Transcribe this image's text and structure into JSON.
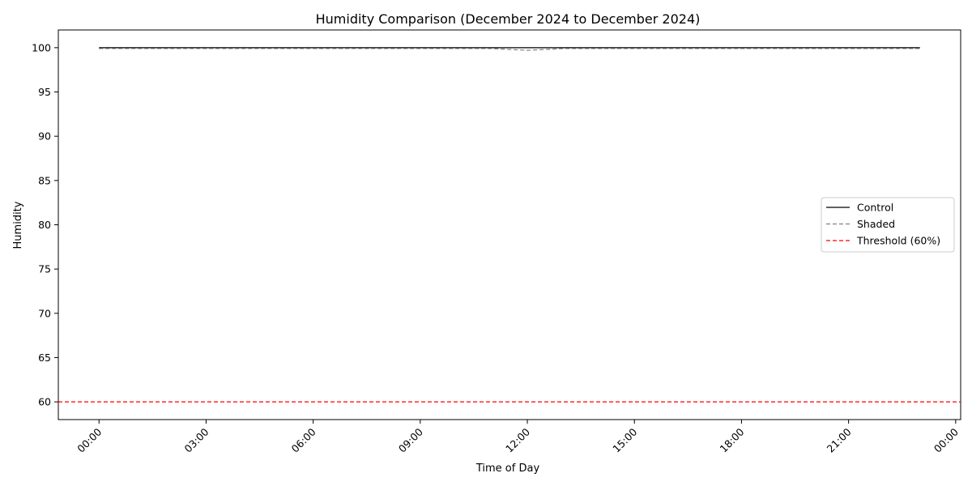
{
  "chart_data": {
    "type": "line",
    "title": "Humidity Comparison (December 2024 to December 2024)",
    "xlabel": "Time of Day",
    "ylabel": "Humidity",
    "xlim_hours": [
      -1.14,
      24.14
    ],
    "ylim": [
      58,
      102
    ],
    "x_ticks": [
      {
        "hour": 0,
        "label": "00:00"
      },
      {
        "hour": 3,
        "label": "03:00"
      },
      {
        "hour": 6,
        "label": "06:00"
      },
      {
        "hour": 9,
        "label": "09:00"
      },
      {
        "hour": 12,
        "label": "12:00"
      },
      {
        "hour": 15,
        "label": "15:00"
      },
      {
        "hour": 18,
        "label": "18:00"
      },
      {
        "hour": 21,
        "label": "21:00"
      },
      {
        "hour": 24,
        "label": "00:00"
      }
    ],
    "y_ticks": [
      60,
      65,
      70,
      75,
      80,
      85,
      90,
      95,
      100
    ],
    "x_hours": [
      0,
      1,
      2,
      3,
      4,
      5,
      6,
      7,
      8,
      9,
      10,
      11,
      12,
      13,
      14,
      15,
      16,
      17,
      18,
      19,
      20,
      21,
      22,
      23
    ],
    "series": [
      {
        "name": "Control",
        "color": "#000000",
        "style": "solid",
        "values": [
          100,
          100,
          100,
          100,
          100,
          100,
          100,
          100,
          100,
          100,
          100,
          100,
          100,
          100,
          100,
          100,
          100,
          100,
          100,
          100,
          100,
          100,
          100,
          100
        ]
      },
      {
        "name": "Shaded",
        "color": "#808080",
        "style": "dashed",
        "values": [
          99.9,
          99.9,
          99.9,
          99.9,
          99.9,
          99.9,
          99.9,
          99.9,
          99.9,
          99.9,
          99.9,
          99.9,
          99.7,
          99.9,
          99.9,
          99.9,
          99.9,
          99.9,
          99.9,
          99.9,
          99.9,
          99.9,
          99.9,
          99.9
        ]
      }
    ],
    "threshold": {
      "name": "Threshold (60%)",
      "value": 60,
      "color": "#ff0000",
      "style": "dashed"
    },
    "legend": {
      "position": "center-right",
      "entries": [
        "Control",
        "Shaded",
        "Threshold (60%)"
      ]
    },
    "grid": false
  }
}
